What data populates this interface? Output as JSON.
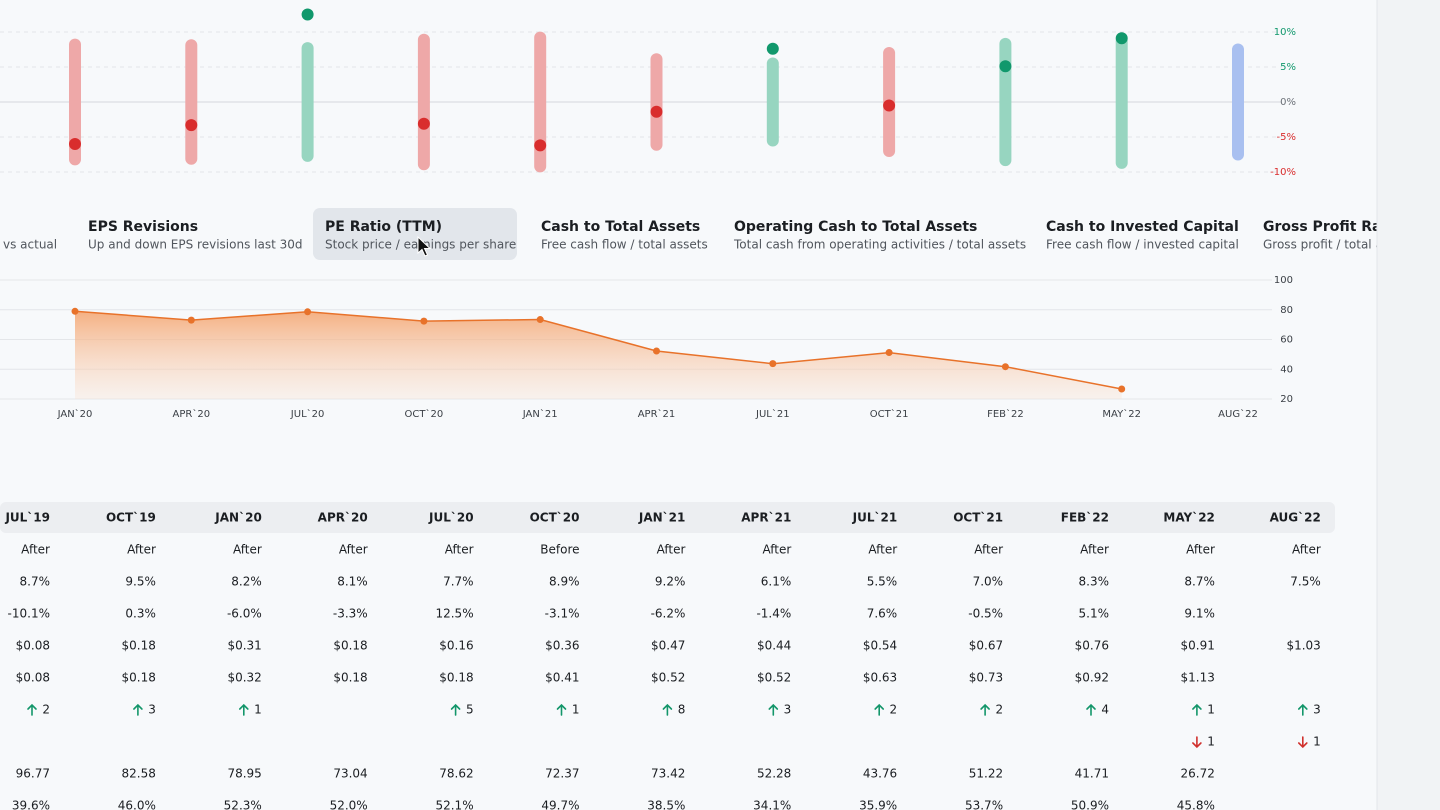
{
  "range_chart": {
    "type": "range",
    "ylim": [
      -10,
      10
    ],
    "yticks": [
      {
        "value": 10,
        "label": "10%"
      },
      {
        "value": 5,
        "label": "5%"
      },
      {
        "value": 0,
        "label": "0%"
      },
      {
        "value": -5,
        "label": "-5%"
      },
      {
        "value": -10,
        "label": "-10%"
      }
    ],
    "ranges": [
      8.2,
      8.1,
      7.7,
      8.9,
      9.2,
      6.1,
      5.5,
      7.0,
      8.3,
      8.7,
      7.5
    ],
    "values": [
      -6.0,
      -3.3,
      12.5,
      -3.1,
      -6.2,
      -1.4,
      7.6,
      -0.5,
      5.1,
      9.1,
      null
    ],
    "colors": {
      "positive_bar": "#97d5c0",
      "negative_bar": "#eea8a8",
      "pending_bar": "#a9c0f0",
      "positive_dot": "#11986c",
      "negative_dot": "#d92d2d"
    }
  },
  "metrics": [
    {
      "subtitle": "vs actual"
    },
    {
      "title": "EPS Revisions",
      "subtitle": "Up and down EPS revisions last 30d"
    },
    {
      "title": "PE Ratio (TTM)",
      "subtitle": "Stock price / earnings per share",
      "selected": true
    },
    {
      "title": "Cash to Total Assets",
      "subtitle": "Free cash flow / total assets"
    },
    {
      "title": "Operating Cash to Total Assets",
      "subtitle": "Total cash from operating activities / total assets"
    },
    {
      "title": "Cash to Invested Capital",
      "subtitle": "Free cash flow / invested capital"
    },
    {
      "title": "Gross Profit Ratio",
      "subtitle": "Gross profit / total a"
    }
  ],
  "pe_chart": {
    "type": "area",
    "categories": [
      "JAN`20",
      "APR`20",
      "JUL`20",
      "OCT`20",
      "JAN`21",
      "APR`21",
      "JUL`21",
      "OCT`21",
      "FEB`22",
      "MAY`22",
      "AUG`22"
    ],
    "values": [
      78.95,
      73.04,
      78.62,
      72.37,
      73.42,
      52.28,
      43.76,
      51.22,
      41.71,
      26.72,
      null
    ],
    "ylim": [
      20,
      100
    ],
    "yticks": [
      100,
      80,
      60,
      40,
      20
    ],
    "color": "#e8722a",
    "grid": true
  },
  "table": {
    "header": [
      "JUL`19",
      "OCT`19",
      "JAN`20",
      "APR`20",
      "JUL`20",
      "OCT`20",
      "JAN`21",
      "APR`21",
      "JUL`21",
      "OCT`21",
      "FEB`22",
      "MAY`22",
      "AUG`22"
    ],
    "rows": [
      [
        "After",
        "After",
        "After",
        "After",
        "After",
        "Before",
        "After",
        "After",
        "After",
        "After",
        "After",
        "After",
        "After"
      ],
      [
        "8.7%",
        "9.5%",
        "8.2%",
        "8.1%",
        "7.7%",
        "8.9%",
        "9.2%",
        "6.1%",
        "5.5%",
        "7.0%",
        "8.3%",
        "8.7%",
        "7.5%"
      ],
      [
        "-10.1%",
        "0.3%",
        "-6.0%",
        "-3.3%",
        "12.5%",
        "-3.1%",
        "-6.2%",
        "-1.4%",
        "7.6%",
        "-0.5%",
        "5.1%",
        "9.1%",
        null
      ],
      [
        "$0.08",
        "$0.18",
        "$0.31",
        "$0.18",
        "$0.16",
        "$0.36",
        "$0.47",
        "$0.44",
        "$0.54",
        "$0.67",
        "$0.76",
        "$0.91",
        "$1.03"
      ],
      [
        "$0.08",
        "$0.18",
        "$0.32",
        "$0.18",
        "$0.18",
        "$0.41",
        "$0.52",
        "$0.52",
        "$0.63",
        "$0.73",
        "$0.92",
        "$1.13",
        null
      ],
      [
        "2",
        "3",
        "1",
        null,
        "5",
        "1",
        "8",
        "3",
        "2",
        "2",
        "4",
        "1",
        "3"
      ],
      [
        null,
        null,
        null,
        null,
        null,
        null,
        null,
        null,
        null,
        null,
        null,
        "1",
        "1"
      ],
      [
        "96.77",
        "82.58",
        "78.95",
        "73.04",
        "78.62",
        "72.37",
        "73.42",
        "52.28",
        "43.76",
        "51.22",
        "41.71",
        "26.72",
        null
      ],
      [
        "39.6%",
        "46.0%",
        "52.3%",
        "52.0%",
        "52.1%",
        "49.7%",
        "38.5%",
        "34.1%",
        "35.9%",
        "53.7%",
        "50.9%",
        "45.8%",
        null
      ]
    ]
  }
}
